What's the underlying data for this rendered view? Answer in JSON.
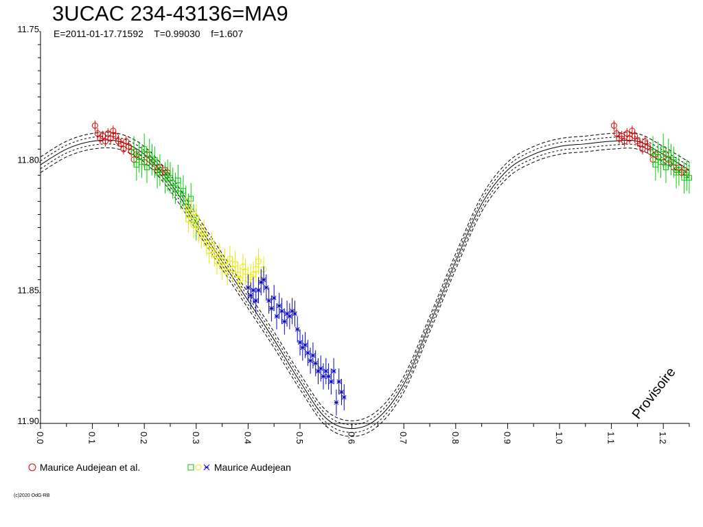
{
  "header": {
    "title": "3UCAC 234-43136=MA9",
    "subtitle": "E=2011-01-17.71592    T=0.99030    f=1.607"
  },
  "watermark": "Provisoire",
  "credit": "(c)2020 OdG-RB",
  "legend": [
    {
      "label": "Maurice Audejean et al.",
      "markers": [
        "circle"
      ],
      "colors": [
        "#dd0000"
      ]
    },
    {
      "label": "Maurice Audejean",
      "markers": [
        "square",
        "circle",
        "cross"
      ],
      "colors": [
        "#00cc00",
        "#e8e800",
        "#0000cc"
      ]
    }
  ],
  "chart_data": {
    "type": "scatter",
    "title": "3UCAC 234-43136=MA9",
    "xlabel": "",
    "ylabel": "",
    "xlim": [
      0.0,
      1.25
    ],
    "ylim": [
      11.75,
      11.9
    ],
    "y_inverted": true,
    "x_ticks": [
      "0.0",
      "0.1",
      "0.2",
      "0.3",
      "0.4",
      "0.5",
      "0.6",
      "0.7",
      "0.8",
      "0.9",
      "1.0",
      "1.1",
      "1.2"
    ],
    "y_ticks": [
      "11.75",
      "11.80",
      "11.85",
      "11.90"
    ],
    "grid": false,
    "model": {
      "name": "",
      "phase": [
        0.0,
        0.05,
        0.1,
        0.15,
        0.2,
        0.25,
        0.3,
        0.35,
        0.4,
        0.45,
        0.5,
        0.55,
        0.6,
        0.65,
        0.7,
        0.75,
        0.8,
        0.85,
        0.9,
        0.95,
        1.0,
        1.05,
        1.1,
        1.15,
        1.2,
        1.25
      ],
      "mag": [
        11.801,
        11.795,
        11.792,
        11.792,
        11.797,
        11.808,
        11.823,
        11.838,
        11.853,
        11.868,
        11.884,
        11.898,
        11.902,
        11.898,
        11.885,
        11.862,
        11.838,
        11.816,
        11.803,
        11.797,
        11.794,
        11.793,
        11.792,
        11.792,
        11.797,
        11.803
      ],
      "envelope_offset": 0.003
    },
    "series": [
      {
        "name": "Maurice Audejean et al.",
        "marker": "circle",
        "color": "#dd0000",
        "x": [
          0.105,
          0.11,
          0.115,
          0.12,
          0.125,
          0.13,
          0.135,
          0.14,
          0.145,
          0.15,
          0.155,
          0.16,
          0.165,
          0.17,
          0.175,
          0.18,
          0.185,
          0.19,
          0.2,
          0.205,
          0.21,
          0.215,
          0.22,
          0.225,
          0.23,
          0.235,
          0.24,
          0.245,
          1.105,
          1.11,
          1.115,
          1.12,
          1.125,
          1.13,
          1.135,
          1.14,
          1.145,
          1.15,
          1.155,
          1.16,
          1.165,
          1.17,
          1.175,
          1.18,
          1.185,
          1.19,
          1.2,
          1.205,
          1.21,
          1.215,
          1.22,
          1.225,
          1.23,
          1.235,
          1.24,
          1.245
        ],
        "y": [
          11.786,
          11.789,
          11.791,
          11.79,
          11.792,
          11.789,
          11.791,
          11.788,
          11.79,
          11.792,
          11.793,
          11.795,
          11.792,
          11.794,
          11.796,
          11.799,
          11.797,
          11.798,
          11.8,
          11.797,
          11.799,
          11.8,
          11.802,
          11.803,
          11.802,
          11.804,
          11.803,
          11.804,
          11.786,
          11.789,
          11.791,
          11.79,
          11.792,
          11.789,
          11.791,
          11.788,
          11.79,
          11.792,
          11.793,
          11.795,
          11.792,
          11.794,
          11.796,
          11.799,
          11.797,
          11.798,
          11.8,
          11.797,
          11.799,
          11.8,
          11.802,
          11.803,
          11.802,
          11.804,
          11.803,
          11.804
        ],
        "yerr": 0.002
      },
      {
        "name": "Maurice Audejean",
        "marker": "square",
        "color": "#00cc00",
        "x": [
          0.18,
          0.185,
          0.19,
          0.195,
          0.2,
          0.205,
          0.21,
          0.215,
          0.22,
          0.225,
          0.23,
          0.24,
          0.245,
          0.25,
          0.255,
          0.26,
          0.265,
          0.27,
          0.275,
          0.28,
          0.285,
          0.29,
          0.295,
          0.3,
          1.18,
          1.185,
          1.19,
          1.195,
          1.2,
          1.205,
          1.21,
          1.215,
          1.22,
          1.225,
          1.23,
          1.24,
          1.245,
          1.25
        ],
        "y": [
          11.796,
          11.801,
          11.798,
          11.8,
          11.795,
          11.802,
          11.797,
          11.799,
          11.8,
          11.804,
          11.803,
          11.806,
          11.805,
          11.806,
          11.808,
          11.81,
          11.807,
          11.812,
          11.811,
          11.815,
          11.818,
          11.814,
          11.822,
          11.824,
          11.796,
          11.801,
          11.798,
          11.8,
          11.795,
          11.802,
          11.797,
          11.799,
          11.8,
          11.804,
          11.803,
          11.806,
          11.805,
          11.806
        ],
        "yerr": 0.006
      },
      {
        "name": "",
        "marker": "circle",
        "color": "#e8e800",
        "x": [
          0.28,
          0.285,
          0.29,
          0.295,
          0.3,
          0.305,
          0.31,
          0.315,
          0.32,
          0.325,
          0.33,
          0.335,
          0.34,
          0.345,
          0.35,
          0.355,
          0.36,
          0.365,
          0.37,
          0.375,
          0.38,
          0.385,
          0.39,
          0.395,
          0.4,
          0.405,
          0.41,
          0.415,
          0.42,
          0.425,
          0.43
        ],
        "y": [
          11.818,
          11.822,
          11.819,
          11.824,
          11.821,
          11.826,
          11.828,
          11.827,
          11.831,
          11.834,
          11.832,
          11.835,
          11.838,
          11.836,
          11.84,
          11.838,
          11.842,
          11.837,
          11.841,
          11.839,
          11.843,
          11.845,
          11.84,
          11.842,
          11.845,
          11.844,
          11.843,
          11.841,
          11.838,
          11.845,
          11.841
        ],
        "yerr": 0.005
      },
      {
        "name": "",
        "marker": "cross",
        "color": "#0000cc",
        "x": [
          0.4,
          0.405,
          0.41,
          0.415,
          0.42,
          0.425,
          0.43,
          0.435,
          0.44,
          0.445,
          0.45,
          0.455,
          0.46,
          0.465,
          0.47,
          0.475,
          0.48,
          0.485,
          0.49,
          0.495,
          0.5,
          0.505,
          0.51,
          0.515,
          0.52,
          0.525,
          0.53,
          0.535,
          0.54,
          0.545,
          0.55,
          0.555,
          0.56,
          0.565,
          0.57,
          0.575,
          0.58,
          0.585
        ],
        "y": [
          11.848,
          11.851,
          11.849,
          11.853,
          11.849,
          11.846,
          11.845,
          11.848,
          11.853,
          11.856,
          11.852,
          11.859,
          11.855,
          11.857,
          11.861,
          11.858,
          11.859,
          11.857,
          11.858,
          11.864,
          11.869,
          11.871,
          11.87,
          11.873,
          11.876,
          11.874,
          11.877,
          11.88,
          11.879,
          11.882,
          11.88,
          11.882,
          11.884,
          11.88,
          11.892,
          11.884,
          11.888,
          11.89
        ],
        "yerr": 0.005
      }
    ]
  }
}
